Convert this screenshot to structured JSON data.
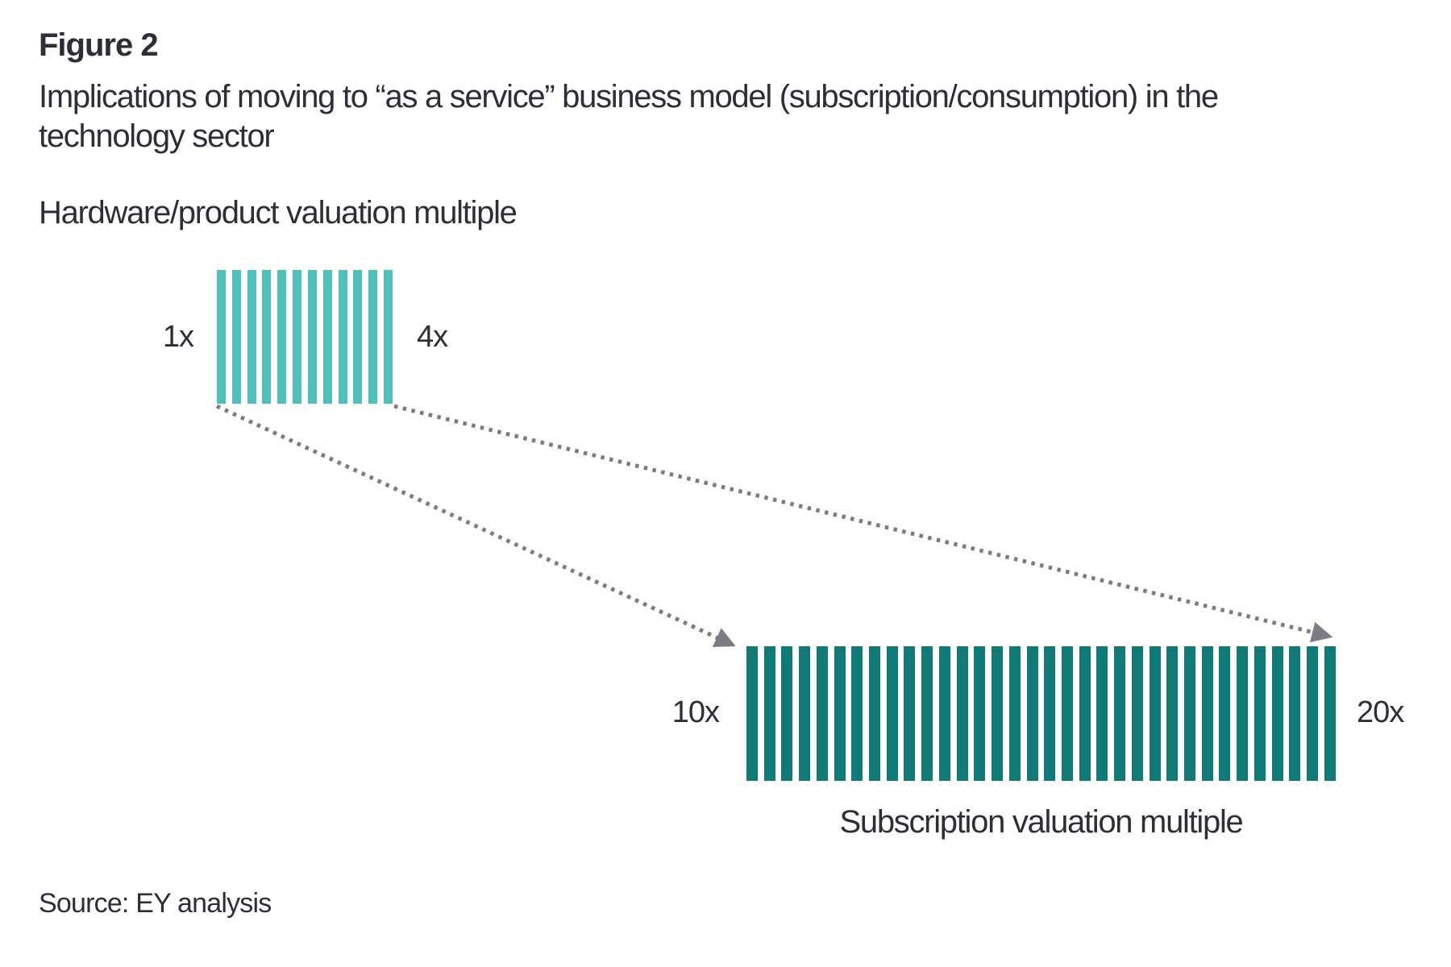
{
  "figure": {
    "label": "Figure 2",
    "title_line1": "Implications of moving to “as a service” business model (subscription/consumption) in the",
    "title_line2": "technology sector"
  },
  "hardware_bar": {
    "axis_label": "Hardware/product valuation multiple",
    "min_label": "1x",
    "max_label": "4x",
    "color": "#4fc1bb",
    "stripe_count": 12
  },
  "subscription_bar": {
    "axis_label": "Subscription valuation multiple",
    "min_label": "10x",
    "max_label": "20x",
    "color": "#0f7a76",
    "stripe_count": 34
  },
  "arrow_color": "#7c7c84",
  "source": "Source: EY analysis",
  "chart_data": {
    "type": "bar",
    "title": "Implications of moving to “as a service” business model (subscription/consumption) in the technology sector",
    "series": [
      {
        "name": "Hardware/product valuation multiple",
        "range_min": 1,
        "range_max": 4,
        "min_label": "1x",
        "max_label": "4x",
        "color": "#4fc1bb"
      },
      {
        "name": "Subscription valuation multiple",
        "range_min": 10,
        "range_max": 20,
        "min_label": "10x",
        "max_label": "20x",
        "color": "#0f7a76"
      }
    ],
    "annotations": [
      "dotted arrow from hardware bar lower-left corner to subscription bar upper-left corner",
      "dotted arrow from hardware bar lower-right corner to subscription bar upper-right corner"
    ],
    "legend": "none",
    "grid": false,
    "source": "Source: EY analysis"
  }
}
